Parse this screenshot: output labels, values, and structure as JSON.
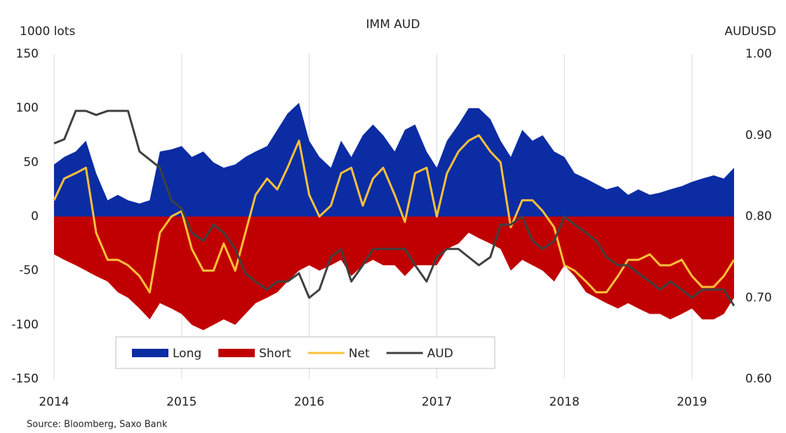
{
  "chart_data": {
    "type": "area-line",
    "title": "IMM AUD",
    "y_label": "1000 lots",
    "y2_label": "AUDUSD",
    "source": "Source: Bloomberg,  Saxo Bank",
    "x": [
      2014,
      2014.08,
      2014.17,
      2014.25,
      2014.33,
      2014.42,
      2014.5,
      2014.58,
      2014.67,
      2014.75,
      2014.83,
      2014.92,
      2015,
      2015.08,
      2015.17,
      2015.25,
      2015.33,
      2015.42,
      2015.5,
      2015.58,
      2015.67,
      2015.75,
      2015.83,
      2015.92,
      2016,
      2016.08,
      2016.17,
      2016.25,
      2016.33,
      2016.42,
      2016.5,
      2016.58,
      2016.67,
      2016.75,
      2016.83,
      2016.92,
      2017,
      2017.08,
      2017.17,
      2017.25,
      2017.33,
      2017.42,
      2017.5,
      2017.58,
      2017.67,
      2017.75,
      2017.83,
      2017.92,
      2018,
      2018.08,
      2018.17,
      2018.25,
      2018.33,
      2018.42,
      2018.5,
      2018.58,
      2018.67,
      2018.75,
      2018.83,
      2018.92,
      2019,
      2019.08,
      2019.17,
      2019.25,
      2019.33
    ],
    "series": [
      {
        "name": "Long",
        "kind": "area",
        "color": "#0b2ca3",
        "values": [
          48,
          55,
          60,
          70,
          40,
          15,
          20,
          15,
          12,
          15,
          60,
          62,
          65,
          55,
          60,
          50,
          45,
          48,
          55,
          60,
          65,
          80,
          95,
          105,
          70,
          55,
          45,
          70,
          55,
          75,
          85,
          75,
          60,
          80,
          85,
          60,
          45,
          70,
          85,
          100,
          100,
          90,
          70,
          55,
          80,
          70,
          75,
          60,
          55,
          40,
          35,
          30,
          25,
          28,
          20,
          25,
          20,
          22,
          25,
          28,
          32,
          35,
          38,
          35,
          45
        ]
      },
      {
        "name": "Short",
        "kind": "area",
        "color": "#c00000",
        "values": [
          -35,
          -40,
          -45,
          -50,
          -55,
          -60,
          -70,
          -75,
          -85,
          -95,
          -80,
          -85,
          -90,
          -100,
          -105,
          -100,
          -95,
          -100,
          -90,
          -80,
          -75,
          -70,
          -60,
          -50,
          -45,
          -50,
          -45,
          -40,
          -55,
          -45,
          -40,
          -45,
          -45,
          -55,
          -45,
          -45,
          -45,
          -30,
          -25,
          -15,
          -20,
          -25,
          -30,
          -50,
          -40,
          -45,
          -50,
          -60,
          -45,
          -55,
          -70,
          -75,
          -80,
          -85,
          -80,
          -85,
          -90,
          -90,
          -95,
          -90,
          -85,
          -95,
          -95,
          -90,
          -75
        ]
      },
      {
        "name": "Net",
        "kind": "line",
        "color": "#ffc13b",
        "values": [
          15,
          35,
          40,
          45,
          -15,
          -40,
          -40,
          -45,
          -55,
          -70,
          -15,
          0,
          5,
          -30,
          -50,
          -50,
          -25,
          -50,
          -15,
          20,
          35,
          25,
          45,
          70,
          20,
          0,
          10,
          40,
          45,
          10,
          35,
          45,
          20,
          -5,
          40,
          45,
          0,
          40,
          60,
          70,
          75,
          60,
          50,
          -10,
          15,
          15,
          5,
          -10,
          -45,
          -50,
          -60,
          -70,
          -70,
          -55,
          -40,
          -40,
          -35,
          -45,
          -45,
          -40,
          -55,
          -65,
          -65,
          -55,
          -40
        ]
      },
      {
        "name": "AUD",
        "kind": "line",
        "axis": "y2",
        "color": "#404040",
        "values": [
          0.89,
          0.895,
          0.93,
          0.93,
          0.925,
          0.93,
          0.93,
          0.93,
          0.88,
          0.87,
          0.86,
          0.82,
          0.81,
          0.78,
          0.77,
          0.79,
          0.78,
          0.76,
          0.73,
          0.72,
          0.71,
          0.72,
          0.72,
          0.73,
          0.7,
          0.71,
          0.75,
          0.76,
          0.72,
          0.74,
          0.76,
          0.76,
          0.76,
          0.76,
          0.74,
          0.72,
          0.75,
          0.76,
          0.76,
          0.75,
          0.74,
          0.75,
          0.79,
          0.79,
          0.8,
          0.77,
          0.76,
          0.77,
          0.8,
          0.79,
          0.78,
          0.77,
          0.75,
          0.74,
          0.74,
          0.73,
          0.72,
          0.71,
          0.72,
          0.71,
          0.7,
          0.71,
          0.71,
          0.71,
          0.69
        ]
      }
    ],
    "xlim": [
      2014,
      2019.35
    ],
    "xticks": [
      2014,
      2015,
      2016,
      2017,
      2018,
      2019
    ],
    "ylim": [
      -150,
      150
    ],
    "yticks": [
      -150,
      -100,
      -50,
      0,
      50,
      100,
      150
    ],
    "y2lim": [
      0.6,
      1
    ],
    "y2ticks": [
      {
        "value": 0.6,
        "label": "0.60"
      },
      {
        "value": 0.7,
        "label": "0.70"
      },
      {
        "value": 0.8,
        "label": "0.80"
      },
      {
        "value": 0.9,
        "label": "0.90"
      },
      {
        "value": 1,
        "label": "1.00"
      }
    ],
    "xgrid": true,
    "legend": "lower left"
  }
}
